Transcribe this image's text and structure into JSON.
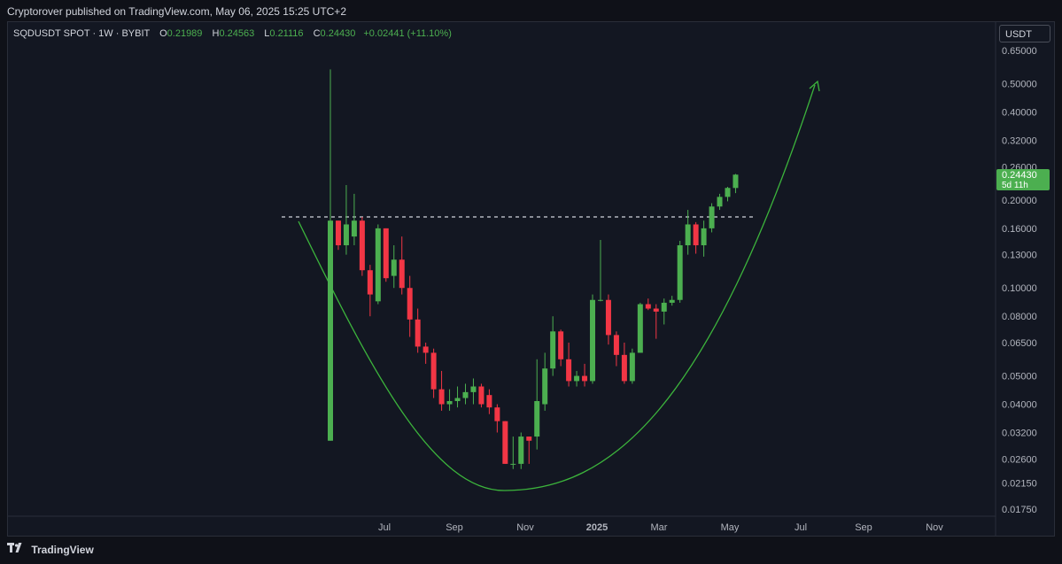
{
  "header": {
    "published": "Cryptorover published on TradingView.com, May 06, 2025 15:25 UTC+2"
  },
  "legend": {
    "symbol": "SQDUSDT SPOT · 1W · BYBIT",
    "o_label": "O",
    "o": "0.21989",
    "h_label": "H",
    "h": "0.24563",
    "l_label": "L",
    "l": "0.21116",
    "c_label": "C",
    "c": "0.24430",
    "change": "+0.02441 (+11.10%)"
  },
  "price_axis": {
    "unit": "USDT",
    "last_price": "0.24430",
    "countdown": "5d 11h"
  },
  "footer": {
    "brand": "TradingView"
  },
  "colors": {
    "up": "#4caf50",
    "down": "#f23645",
    "pattern": "#3cb43c",
    "background": "#131722"
  },
  "chart_data": {
    "type": "candlestick",
    "interval": "1W",
    "y_scale": "log",
    "ylim": [
      0.016,
      0.72
    ],
    "y_ticks": [
      0.65,
      0.5,
      0.4,
      0.32,
      0.26,
      0.2,
      0.16,
      0.13,
      0.1,
      0.08,
      0.065,
      0.05,
      0.04,
      0.032,
      0.026,
      0.0215,
      0.0175
    ],
    "x_ticks": [
      "Jul",
      "Sep",
      "Nov",
      "2025",
      "Mar",
      "May",
      "Jul",
      "Sep",
      "Nov"
    ],
    "resistance_level": 0.175,
    "candles": [
      {
        "o": 0.03,
        "h": 0.56,
        "l": 0.03,
        "c": 0.17
      },
      {
        "o": 0.17,
        "h": 0.17,
        "l": 0.135,
        "c": 0.14
      },
      {
        "o": 0.14,
        "h": 0.225,
        "l": 0.13,
        "c": 0.165
      },
      {
        "o": 0.15,
        "h": 0.21,
        "l": 0.14,
        "c": 0.17
      },
      {
        "o": 0.17,
        "h": 0.175,
        "l": 0.11,
        "c": 0.115
      },
      {
        "o": 0.115,
        "h": 0.12,
        "l": 0.08,
        "c": 0.095
      },
      {
        "o": 0.09,
        "h": 0.165,
        "l": 0.088,
        "c": 0.16
      },
      {
        "o": 0.16,
        "h": 0.16,
        "l": 0.105,
        "c": 0.108
      },
      {
        "o": 0.11,
        "h": 0.14,
        "l": 0.1,
        "c": 0.125
      },
      {
        "o": 0.125,
        "h": 0.15,
        "l": 0.095,
        "c": 0.1
      },
      {
        "o": 0.1,
        "h": 0.11,
        "l": 0.068,
        "c": 0.078
      },
      {
        "o": 0.078,
        "h": 0.085,
        "l": 0.06,
        "c": 0.063
      },
      {
        "o": 0.063,
        "h": 0.065,
        "l": 0.055,
        "c": 0.06
      },
      {
        "o": 0.06,
        "h": 0.062,
        "l": 0.042,
        "c": 0.045
      },
      {
        "o": 0.045,
        "h": 0.052,
        "l": 0.038,
        "c": 0.04
      },
      {
        "o": 0.04,
        "h": 0.045,
        "l": 0.038,
        "c": 0.041
      },
      {
        "o": 0.041,
        "h": 0.046,
        "l": 0.039,
        "c": 0.042
      },
      {
        "o": 0.042,
        "h": 0.047,
        "l": 0.04,
        "c": 0.044
      },
      {
        "o": 0.044,
        "h": 0.049,
        "l": 0.04,
        "c": 0.046
      },
      {
        "o": 0.046,
        "h": 0.047,
        "l": 0.039,
        "c": 0.04
      },
      {
        "o": 0.043,
        "h": 0.045,
        "l": 0.037,
        "c": 0.039
      },
      {
        "o": 0.039,
        "h": 0.04,
        "l": 0.032,
        "c": 0.035
      },
      {
        "o": 0.035,
        "h": 0.035,
        "l": 0.025,
        "c": 0.025
      },
      {
        "o": 0.025,
        "h": 0.031,
        "l": 0.024,
        "c": 0.025
      },
      {
        "o": 0.025,
        "h": 0.032,
        "l": 0.024,
        "c": 0.031
      },
      {
        "o": 0.031,
        "h": 0.031,
        "l": 0.025,
        "c": 0.03
      },
      {
        "o": 0.031,
        "h": 0.057,
        "l": 0.028,
        "c": 0.041
      },
      {
        "o": 0.04,
        "h": 0.06,
        "l": 0.038,
        "c": 0.053
      },
      {
        "o": 0.053,
        "h": 0.08,
        "l": 0.05,
        "c": 0.071
      },
      {
        "o": 0.071,
        "h": 0.072,
        "l": 0.054,
        "c": 0.057
      },
      {
        "o": 0.057,
        "h": 0.065,
        "l": 0.046,
        "c": 0.048
      },
      {
        "o": 0.048,
        "h": 0.052,
        "l": 0.046,
        "c": 0.05
      },
      {
        "o": 0.05,
        "h": 0.055,
        "l": 0.046,
        "c": 0.048
      },
      {
        "o": 0.048,
        "h": 0.095,
        "l": 0.047,
        "c": 0.091
      },
      {
        "o": 0.091,
        "h": 0.146,
        "l": 0.09,
        "c": 0.091
      },
      {
        "o": 0.091,
        "h": 0.095,
        "l": 0.064,
        "c": 0.069
      },
      {
        "o": 0.069,
        "h": 0.071,
        "l": 0.054,
        "c": 0.059
      },
      {
        "o": 0.059,
        "h": 0.065,
        "l": 0.047,
        "c": 0.048
      },
      {
        "o": 0.048,
        "h": 0.062,
        "l": 0.047,
        "c": 0.06
      },
      {
        "o": 0.06,
        "h": 0.089,
        "l": 0.06,
        "c": 0.088
      },
      {
        "o": 0.088,
        "h": 0.092,
        "l": 0.084,
        "c": 0.085
      },
      {
        "o": 0.085,
        "h": 0.088,
        "l": 0.067,
        "c": 0.083
      },
      {
        "o": 0.083,
        "h": 0.092,
        "l": 0.075,
        "c": 0.089
      },
      {
        "o": 0.089,
        "h": 0.094,
        "l": 0.087,
        "c": 0.091
      },
      {
        "o": 0.091,
        "h": 0.145,
        "l": 0.089,
        "c": 0.14
      },
      {
        "o": 0.14,
        "h": 0.185,
        "l": 0.13,
        "c": 0.165
      },
      {
        "o": 0.165,
        "h": 0.168,
        "l": 0.131,
        "c": 0.14
      },
      {
        "o": 0.14,
        "h": 0.17,
        "l": 0.128,
        "c": 0.16
      },
      {
        "o": 0.16,
        "h": 0.195,
        "l": 0.155,
        "c": 0.19
      },
      {
        "o": 0.19,
        "h": 0.21,
        "l": 0.185,
        "c": 0.205
      },
      {
        "o": 0.205,
        "h": 0.222,
        "l": 0.198,
        "c": 0.22
      },
      {
        "o": 0.21989,
        "h": 0.24563,
        "l": 0.21116,
        "c": 0.2443
      }
    ]
  }
}
